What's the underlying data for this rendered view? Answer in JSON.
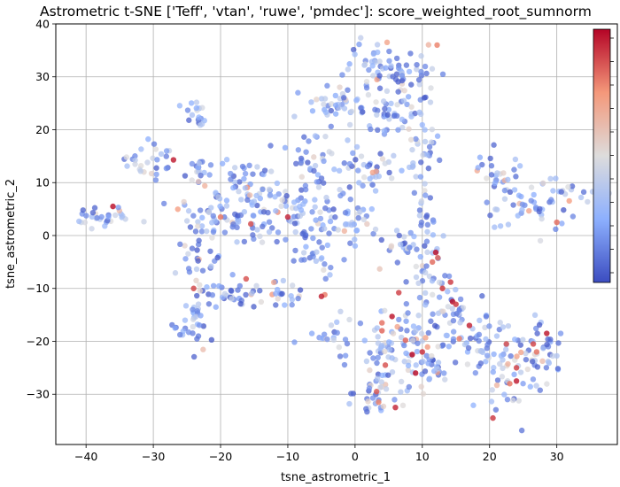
{
  "chart_data": {
    "type": "scatter",
    "title": "Astrometric t-SNE ['Teff', 'vtan', 'ruwe', 'pmdec']: score_weighted_root_sumnorm",
    "xlabel": "tsne_astrometric_1",
    "ylabel": "tsne_astrometric_2",
    "xlim": [
      -44.5,
      39
    ],
    "ylim": [
      -39.5,
      40
    ],
    "xticks": [
      -40,
      -30,
      -20,
      -10,
      0,
      10,
      20,
      30
    ],
    "yticks": [
      -30,
      -20,
      -10,
      0,
      10,
      20,
      30,
      40
    ],
    "grid": true,
    "colormap": "coolwarm",
    "colorbar": {
      "placement": "right",
      "ticks_labeled": false
    },
    "marker_alpha": 0.75,
    "clusters": [
      {
        "cx": -37.5,
        "cy": 3.5,
        "sx": 2.2,
        "sy": 1.2,
        "n": 30
      },
      {
        "cx": -30.5,
        "cy": 14.5,
        "sx": 2.0,
        "sy": 2.2,
        "n": 28
      },
      {
        "cx": -23.5,
        "cy": 22.5,
        "sx": 1.0,
        "sy": 1.8,
        "n": 18
      },
      {
        "cx": -23.5,
        "cy": 12.0,
        "sx": 1.5,
        "sy": 1.8,
        "n": 18
      },
      {
        "cx": -21.5,
        "cy": 3.0,
        "sx": 2.8,
        "sy": 3.0,
        "n": 50
      },
      {
        "cx": -23.0,
        "cy": -5.0,
        "sx": 1.5,
        "sy": 2.5,
        "n": 22
      },
      {
        "cx": -23.5,
        "cy": -16.5,
        "sx": 1.8,
        "sy": 3.0,
        "n": 40
      },
      {
        "cx": -17.0,
        "cy": -10.5,
        "sx": 2.0,
        "sy": 1.6,
        "n": 28
      },
      {
        "cx": -16.0,
        "cy": 10.0,
        "sx": 2.5,
        "sy": 2.5,
        "n": 40
      },
      {
        "cx": -14.0,
        "cy": 3.5,
        "sx": 3.0,
        "sy": 2.0,
        "n": 38
      },
      {
        "cx": -10.5,
        "cy": -11.5,
        "sx": 2.0,
        "sy": 1.5,
        "n": 18
      },
      {
        "cx": -8.0,
        "cy": 5.0,
        "sx": 3.5,
        "sy": 3.5,
        "n": 60
      },
      {
        "cx": -6.0,
        "cy": 15.0,
        "sx": 2.0,
        "sy": 2.5,
        "n": 30
      },
      {
        "cx": -6.0,
        "cy": -4.0,
        "sx": 1.5,
        "sy": 3.0,
        "n": 25
      },
      {
        "cx": -5.5,
        "cy": -19.5,
        "sx": 1.8,
        "sy": 0.8,
        "n": 12
      },
      {
        "cx": -2.5,
        "cy": 24.5,
        "sx": 2.5,
        "sy": 2.2,
        "n": 40
      },
      {
        "cx": 2.0,
        "cy": 12.0,
        "sx": 3.0,
        "sy": 2.5,
        "n": 40
      },
      {
        "cx": 0.0,
        "cy": 2.0,
        "sx": 2.5,
        "sy": 2.5,
        "n": 30
      },
      {
        "cx": 3.0,
        "cy": 32.5,
        "sx": 2.0,
        "sy": 2.2,
        "n": 30
      },
      {
        "cx": 7.5,
        "cy": 30.5,
        "sx": 3.0,
        "sy": 2.5,
        "n": 50
      },
      {
        "cx": 5.0,
        "cy": 22.0,
        "sx": 3.0,
        "sy": 2.5,
        "n": 40
      },
      {
        "cx": 10.5,
        "cy": 15.0,
        "sx": 1.5,
        "sy": 4.0,
        "n": 28
      },
      {
        "cx": 10.5,
        "cy": 5.0,
        "sx": 1.0,
        "sy": 2.0,
        "n": 12
      },
      {
        "cx": 9.0,
        "cy": -3.0,
        "sx": 2.5,
        "sy": 3.0,
        "n": 40
      },
      {
        "cx": 12.5,
        "cy": -8.0,
        "sx": 1.5,
        "sy": 2.0,
        "n": 15
      },
      {
        "cx": 13.0,
        "cy": -14.5,
        "sx": 3.0,
        "sy": 2.0,
        "n": 35
      },
      {
        "cx": 5.0,
        "cy": -20.0,
        "sx": 3.5,
        "sy": 3.5,
        "n": 60
      },
      {
        "cx": 10.0,
        "cy": -24.0,
        "sx": 3.5,
        "sy": 3.0,
        "n": 55
      },
      {
        "cx": 3.0,
        "cy": -30.0,
        "sx": 2.5,
        "sy": 2.0,
        "n": 30
      },
      {
        "cx": 18.0,
        "cy": -20.5,
        "sx": 2.5,
        "sy": 2.5,
        "n": 40
      },
      {
        "cx": 23.0,
        "cy": -25.0,
        "sx": 2.5,
        "sy": 4.0,
        "n": 50
      },
      {
        "cx": 27.5,
        "cy": -21.0,
        "sx": 1.8,
        "sy": 2.5,
        "n": 30
      },
      {
        "cx": 21.5,
        "cy": 12.0,
        "sx": 1.8,
        "sy": 2.0,
        "n": 25
      },
      {
        "cx": 26.0,
        "cy": 5.0,
        "sx": 3.0,
        "sy": 2.0,
        "n": 40
      },
      {
        "cx": 32.5,
        "cy": 8.5,
        "sx": 3.0,
        "sy": 0.9,
        "n": 20
      }
    ],
    "high_score_points": [
      [
        12.2,
        36.0
      ],
      [
        -10.0,
        3.5
      ],
      [
        -16.2,
        -8.2
      ],
      [
        -4.5,
        -11.2
      ],
      [
        -5.0,
        -11.5
      ],
      [
        -15.5,
        2.2
      ],
      [
        -20.0,
        3.5
      ],
      [
        -27.0,
        14.3
      ],
      [
        -24.0,
        -10.0
      ],
      [
        4.0,
        -16.5
      ],
      [
        5.5,
        -15.3
      ],
      [
        6.5,
        -10.8
      ],
      [
        11.5,
        -5.0
      ],
      [
        12.0,
        -3.2
      ],
      [
        14.2,
        -8.8
      ],
      [
        12.3,
        -4.2
      ],
      [
        14.5,
        -12.5
      ],
      [
        15.0,
        -13.0
      ],
      [
        7.5,
        -19.8
      ],
      [
        8.5,
        -22.5
      ],
      [
        10.0,
        -22.0
      ],
      [
        3.2,
        -29.5
      ],
      [
        3.5,
        -31.5
      ],
      [
        6.0,
        -32.5
      ],
      [
        4.5,
        -24.5
      ],
      [
        15.5,
        -19.5
      ],
      [
        17.0,
        -17.0
      ],
      [
        22.5,
        -20.5
      ],
      [
        23.0,
        -28.0
      ],
      [
        24.0,
        -27.5
      ],
      [
        26.5,
        -20.5
      ],
      [
        27.0,
        -22.0
      ],
      [
        28.5,
        -18.5
      ],
      [
        24.0,
        -25.0
      ],
      [
        30.0,
        2.5
      ],
      [
        -36.0,
        5.5
      ],
      [
        20.5,
        -34.5
      ],
      [
        4.0,
        -18.0
      ],
      [
        9.0,
        -26.0
      ],
      [
        13.0,
        -10.0
      ]
    ]
  }
}
